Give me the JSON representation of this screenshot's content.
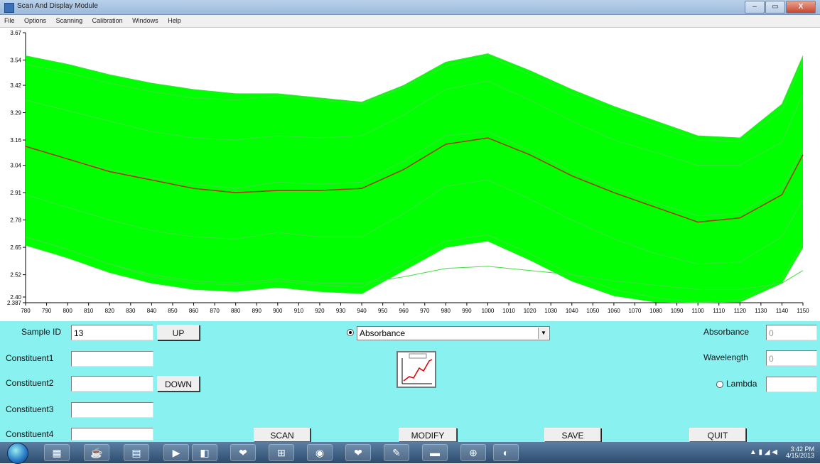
{
  "window": {
    "title": "Scan And Display Module",
    "controls": [
      "–",
      "▭",
      "X"
    ]
  },
  "menu": [
    "File",
    "Options",
    "Scanning",
    "Calibration",
    "Windows",
    "Help"
  ],
  "chart_data": {
    "type": "line",
    "title": "",
    "xlabel": "",
    "ylabel": "",
    "xlim": [
      780,
      1150
    ],
    "ylim": [
      2.387,
      3.67
    ],
    "x_ticks": [
      780,
      790,
      800,
      810,
      820,
      830,
      840,
      850,
      860,
      870,
      880,
      890,
      900,
      910,
      920,
      930,
      940,
      950,
      960,
      970,
      980,
      990,
      1000,
      1010,
      1020,
      1030,
      1040,
      1050,
      1060,
      1070,
      1080,
      1090,
      1100,
      1110,
      1120,
      1130,
      1140,
      1150
    ],
    "y_ticks": [
      "2.387",
      "2.40",
      "2.52",
      "2.65",
      "2.78",
      "2.91",
      "3.04",
      "3.16",
      "3.29",
      "3.42",
      "3.54",
      "3.67"
    ],
    "y_tick_values": [
      2.387,
      2.4,
      2.52,
      2.65,
      2.78,
      2.91,
      3.04,
      3.16,
      3.29,
      3.42,
      3.54,
      3.67
    ],
    "mean_color": "#b03010",
    "band_color": "#00ff00",
    "series": [
      {
        "x": [
          780,
          800,
          820,
          840,
          860,
          880,
          900,
          920,
          940,
          960,
          980,
          1000,
          1020,
          1040,
          1060,
          1080,
          1100,
          1120,
          1140,
          1150
        ],
        "y": [
          3.56,
          3.52,
          3.47,
          3.43,
          3.4,
          3.38,
          3.38,
          3.36,
          3.34,
          3.42,
          3.53,
          3.57,
          3.49,
          3.4,
          3.32,
          3.25,
          3.18,
          3.17,
          3.33,
          3.56
        ]
      },
      {
        "x": [
          780,
          800,
          820,
          840,
          860,
          880,
          900,
          920,
          940,
          960,
          980,
          1000,
          1020,
          1040,
          1060,
          1080,
          1100,
          1120,
          1140,
          1150
        ],
        "y": [
          3.52,
          3.48,
          3.43,
          3.39,
          3.36,
          3.35,
          3.37,
          3.35,
          3.33,
          3.41,
          3.51,
          3.56,
          3.47,
          3.38,
          3.3,
          3.23,
          3.16,
          3.15,
          3.3,
          3.54
        ]
      },
      {
        "x": [
          780,
          800,
          820,
          840,
          860,
          880,
          900,
          920,
          940,
          960,
          980,
          1000,
          1020,
          1040,
          1060,
          1080,
          1100,
          1120,
          1140,
          1150
        ],
        "y": [
          3.35,
          3.3,
          3.25,
          3.2,
          3.17,
          3.16,
          3.18,
          3.17,
          3.18,
          3.28,
          3.4,
          3.44,
          3.35,
          3.25,
          3.16,
          3.1,
          3.04,
          3.04,
          3.15,
          3.38
        ]
      },
      {
        "x": [
          780,
          800,
          820,
          840,
          860,
          880,
          900,
          920,
          940,
          960,
          980,
          1000,
          1020,
          1040,
          1060,
          1080,
          1100,
          1120,
          1140,
          1150
        ],
        "y": [
          3.13,
          3.07,
          3.02,
          2.98,
          2.95,
          2.93,
          2.96,
          2.95,
          2.96,
          3.06,
          3.18,
          3.2,
          3.11,
          3.01,
          2.93,
          2.86,
          2.8,
          2.81,
          2.93,
          3.12
        ]
      },
      {
        "x": [
          780,
          800,
          820,
          840,
          860,
          880,
          900,
          920,
          940,
          960,
          980,
          1000,
          1020,
          1040,
          1060,
          1080,
          1100,
          1120,
          1140,
          1150
        ],
        "y": [
          2.9,
          2.84,
          2.78,
          2.73,
          2.7,
          2.69,
          2.72,
          2.7,
          2.7,
          2.81,
          2.94,
          2.97,
          2.88,
          2.78,
          2.69,
          2.62,
          2.57,
          2.58,
          2.7,
          2.88
        ]
      },
      {
        "x": [
          780,
          800,
          820,
          840,
          860,
          880,
          900,
          920,
          940,
          960,
          980,
          1000,
          1020,
          1040,
          1060,
          1080,
          1100,
          1120,
          1140,
          1150
        ],
        "y": [
          2.7,
          2.64,
          2.57,
          2.51,
          2.48,
          2.47,
          2.49,
          2.47,
          2.46,
          2.57,
          2.68,
          2.71,
          2.62,
          2.52,
          2.45,
          2.41,
          2.39,
          2.4,
          2.5,
          2.67
        ]
      },
      {
        "x": [
          780,
          800,
          820,
          840,
          860,
          880,
          900,
          920,
          940,
          960,
          980,
          1000,
          1020,
          1040,
          1060,
          1080,
          1100,
          1120,
          1140,
          1150
        ],
        "y": [
          2.66,
          2.6,
          2.53,
          2.48,
          2.45,
          2.44,
          2.46,
          2.44,
          2.43,
          2.54,
          2.65,
          2.68,
          2.59,
          2.49,
          2.42,
          2.39,
          2.387,
          2.39,
          2.48,
          2.65
        ]
      },
      {
        "x": [
          780,
          800,
          820,
          840,
          860,
          880,
          900,
          920,
          940,
          960,
          980,
          1000,
          1020,
          1040,
          1060,
          1080,
          1100,
          1120,
          1140,
          1150
        ],
        "y": [
          2.7,
          2.64,
          2.57,
          2.52,
          2.49,
          2.48,
          2.5,
          2.48,
          2.48,
          2.51,
          2.55,
          2.56,
          2.54,
          2.52,
          2.49,
          2.47,
          2.45,
          2.45,
          2.48,
          2.54
        ]
      }
    ],
    "mean": {
      "x": [
        780,
        800,
        820,
        840,
        860,
        880,
        900,
        920,
        940,
        960,
        980,
        1000,
        1020,
        1040,
        1060,
        1080,
        1100,
        1120,
        1140,
        1150
      ],
      "y": [
        3.13,
        3.07,
        3.01,
        2.97,
        2.93,
        2.91,
        2.92,
        2.92,
        2.93,
        3.02,
        3.14,
        3.17,
        3.09,
        2.99,
        2.91,
        2.84,
        2.77,
        2.79,
        2.9,
        3.09
      ]
    }
  },
  "controls": {
    "sample_id_label": "Sample ID",
    "sample_id_value": "13",
    "up": "UP",
    "down": "DOWN",
    "constituents": [
      "Constituent1",
      "Constituent2",
      "Constituent3",
      "Constituent4"
    ],
    "mode_select": "Absorbance",
    "absorbance_label": "Absorbance",
    "absorbance_value": "0",
    "wavelength_label": "Wavelength",
    "wavelength_value": "0",
    "lambda_label": "Lambda",
    "scan": "SCAN",
    "modify": "MODIFY",
    "save": "SAVE",
    "quit": "QUIT"
  },
  "taskbar": {
    "time": "3:42 PM",
    "date": "4/15/2013"
  }
}
